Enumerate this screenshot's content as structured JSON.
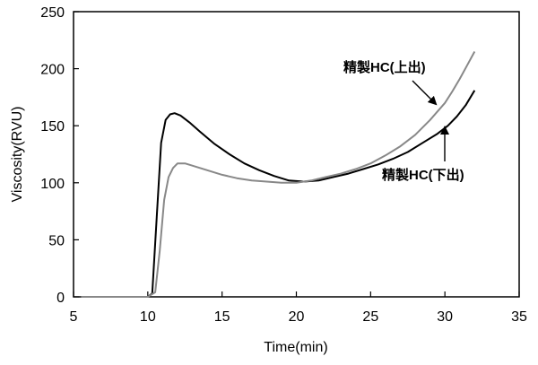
{
  "chart_data": {
    "type": "line",
    "title": "",
    "xlabel": "Time(min)",
    "ylabel": "Viscosity(RVU)",
    "xlim": [
      5,
      35
    ],
    "ylim": [
      0,
      250
    ],
    "x_ticks": [
      5,
      10,
      15,
      20,
      25,
      30,
      35
    ],
    "y_ticks": [
      0,
      50,
      100,
      150,
      200,
      250
    ],
    "grid": false,
    "legend": "none",
    "series": [
      {
        "name": "精製HC(下出)",
        "color": "#000000",
        "x": [
          5.5,
          6.7,
          10.0,
          10.3,
          10.6,
          10.9,
          11.2,
          11.5,
          11.8,
          12.2,
          12.8,
          13.5,
          14.5,
          15.5,
          16.5,
          17.5,
          18.5,
          19.5,
          20.5,
          21.5,
          22.5,
          23.5,
          24.5,
          25.5,
          26.5,
          27.5,
          28.5,
          29.5,
          30.2,
          30.8,
          31.4,
          32.0
        ],
        "y": [
          0,
          0,
          0,
          3,
          70,
          135,
          155,
          160,
          161,
          159,
          153,
          145,
          134,
          125,
          117,
          111,
          106,
          102,
          101,
          102,
          105,
          108,
          112,
          116,
          121,
          127,
          135,
          143,
          150,
          158,
          168,
          181
        ]
      },
      {
        "name": "精製HC(上出)",
        "color": "#888888",
        "x": [
          5.5,
          6.7,
          10.0,
          10.5,
          10.8,
          11.1,
          11.4,
          11.7,
          12.0,
          12.5,
          13.0,
          14.0,
          15.0,
          16.0,
          17.0,
          18.0,
          19.0,
          20.0,
          21.0,
          22.0,
          23.0,
          24.0,
          25.0,
          26.0,
          27.0,
          28.0,
          29.0,
          30.0,
          30.5,
          31.0,
          31.5,
          32.0
        ],
        "y": [
          0,
          0,
          0,
          4,
          40,
          85,
          105,
          113,
          117,
          117,
          115,
          111,
          107,
          104,
          102,
          101,
          100,
          100,
          102,
          105,
          108,
          112,
          117,
          124,
          132,
          142,
          155,
          170,
          180,
          191,
          203,
          215
        ]
      }
    ],
    "annotations": [
      {
        "text": "精製HC(上出)",
        "series": 1
      },
      {
        "text": "精製HC(下出)",
        "series": 0
      }
    ]
  }
}
